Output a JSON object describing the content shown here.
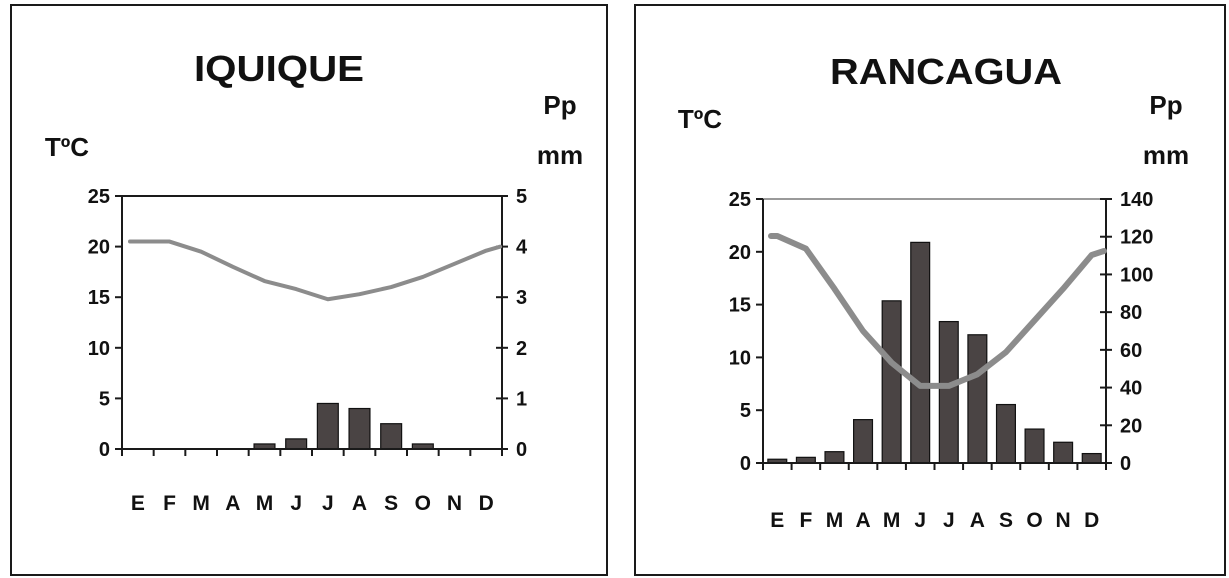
{
  "chart_data": [
    {
      "type": "bar",
      "title": "IQUIQUE",
      "ylabel_left": "TºC",
      "ylabel_right_line1": "Pp",
      "ylabel_right_line2": "mm",
      "categories": [
        "E",
        "F",
        "M",
        "A",
        "M",
        "J",
        "J",
        "A",
        "S",
        "O",
        "N",
        "D"
      ],
      "temp_ylim": [
        0,
        25
      ],
      "temp_ticks": [
        0,
        5,
        10,
        15,
        20,
        25
      ],
      "precip_ylim": [
        0,
        5
      ],
      "precip_ticks": [
        0,
        1,
        2,
        3,
        4,
        5
      ],
      "series": [
        {
          "name": "",
          "kind": "bar",
          "axis": "right",
          "values": [
            0,
            0,
            0,
            0,
            0.1,
            0.2,
            0.9,
            0.8,
            0.5,
            0.1,
            0,
            0
          ]
        },
        {
          "name": "",
          "kind": "line",
          "axis": "left",
          "values": [
            20.5,
            20.5,
            19.5,
            18,
            16.6,
            15.8,
            14.8,
            15.3,
            16,
            17,
            18.3,
            19.6
          ]
        }
      ],
      "top_border": true,
      "grid": false,
      "legend": "none"
    },
    {
      "type": "bar",
      "title": "RANCAGUA",
      "ylabel_left": "TºC",
      "ylabel_right_line1": "Pp",
      "ylabel_right_line2": "mm",
      "categories": [
        "E",
        "F",
        "M",
        "A",
        "M",
        "J",
        "J",
        "A",
        "S",
        "O",
        "N",
        "D"
      ],
      "temp_ylim": [
        0,
        25
      ],
      "temp_ticks": [
        0,
        5,
        10,
        15,
        20,
        25
      ],
      "precip_ylim": [
        0,
        140
      ],
      "precip_ticks": [
        0,
        20,
        40,
        60,
        80,
        100,
        120,
        140
      ],
      "series": [
        {
          "name": "",
          "kind": "bar",
          "axis": "right",
          "values": [
            2,
            3,
            6,
            23,
            86,
            117,
            75,
            68,
            31,
            18,
            11,
            5
          ]
        },
        {
          "name": "",
          "kind": "line",
          "axis": "left",
          "values": [
            21.5,
            20.3,
            16.5,
            12.5,
            9.5,
            7.3,
            7.3,
            8.4,
            10.5,
            13.5,
            16.5,
            19.7
          ]
        }
      ],
      "top_border": true,
      "grid": false,
      "legend": "none"
    }
  ],
  "colors": {
    "bar_fill": "#4a4444",
    "line": "#8c8c8c",
    "axis": "#1a1a1a",
    "top_border": "#9a9a9a"
  }
}
